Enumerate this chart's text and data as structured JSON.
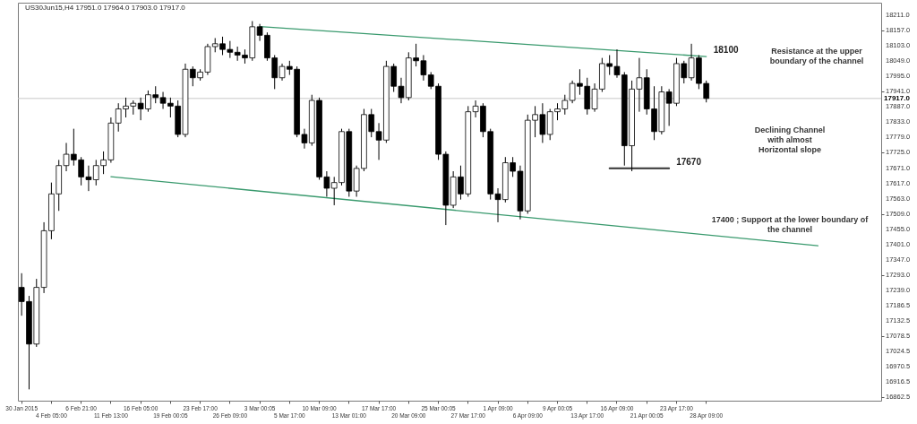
{
  "chart_data": {
    "type": "candlestick",
    "title": "US30Jun15,H4  17951.0 17964.0 17903.0 17917.0",
    "color": "#000000",
    "categories": [
      "30 Jan 2015",
      null,
      null,
      null,
      "4 Feb 05:00",
      null,
      null,
      null,
      "6 Feb 21:00",
      null,
      null,
      null,
      "11 Feb 13:00",
      null,
      null,
      null,
      "16 Feb 05:00",
      null,
      null,
      null,
      "19 Feb 00:05",
      null,
      null,
      null,
      "23 Feb 17:00",
      null,
      null,
      null,
      "26 Feb 09:00",
      null,
      null,
      null,
      "3 Mar 00:05",
      null,
      null,
      null,
      "5 Mar 17:00",
      null,
      null,
      null,
      "10 Mar 09:00",
      null,
      null,
      null,
      "13 Mar 01:00",
      null,
      null,
      null,
      "17 Mar 17:00",
      null,
      null,
      null,
      "20 Mar 09:00",
      null,
      null,
      null,
      "25 Mar 00:05",
      null,
      null,
      null,
      "27 Mar 17:00",
      null,
      null,
      null,
      "1 Apr 09:00",
      null,
      null,
      null,
      "6 Apr 09:00",
      null,
      null,
      null,
      "9 Apr 00:05",
      null,
      null,
      null,
      "13 Apr 17:00",
      null,
      null,
      null,
      "16 Apr 09:00",
      null,
      null,
      null,
      "21 Apr 00:05",
      null,
      null,
      null,
      "23 Apr 17:00",
      null,
      null,
      null,
      "28 Apr 09:00",
      null,
      null,
      null,
      null,
      null,
      null,
      null,
      null,
      null,
      null,
      null,
      null,
      null,
      null,
      null,
      null,
      null,
      null,
      null,
      null,
      null,
      null,
      null
    ],
    "ohlc": [
      [
        17250,
        17300,
        17150,
        17200
      ],
      [
        17200,
        17220,
        16890,
        17050
      ],
      [
        17050,
        17280,
        17040,
        17250
      ],
      [
        17250,
        17480,
        17230,
        17450
      ],
      [
        17450,
        17620,
        17420,
        17580
      ],
      [
        17580,
        17700,
        17520,
        17680
      ],
      [
        17680,
        17760,
        17660,
        17720
      ],
      [
        17720,
        17810,
        17680,
        17700
      ],
      [
        17700,
        17710,
        17610,
        17640
      ],
      [
        17640,
        17680,
        17590,
        17630
      ],
      [
        17630,
        17700,
        17610,
        17680
      ],
      [
        17680,
        17730,
        17650,
        17700
      ],
      [
        17700,
        17850,
        17690,
        17830
      ],
      [
        17830,
        17900,
        17800,
        17880
      ],
      [
        17880,
        17920,
        17850,
        17890
      ],
      [
        17890,
        17910,
        17860,
        17900
      ],
      [
        17900,
        17920,
        17840,
        17880
      ],
      [
        17880,
        17945,
        17870,
        17930
      ],
      [
        17930,
        17960,
        17900,
        17920
      ],
      [
        17920,
        17940,
        17880,
        17900
      ],
      [
        17900,
        17920,
        17850,
        17890
      ],
      [
        17890,
        17910,
        17780,
        17790
      ],
      [
        17790,
        18040,
        17780,
        18020
      ],
      [
        18020,
        18030,
        17960,
        17990
      ],
      [
        17990,
        18020,
        17980,
        18010
      ],
      [
        18010,
        18110,
        18000,
        18100
      ],
      [
        18100,
        18130,
        18080,
        18110
      ],
      [
        18110,
        18135,
        18070,
        18090
      ],
      [
        18090,
        18120,
        18060,
        18080
      ],
      [
        18080,
        18100,
        18050,
        18070
      ],
      [
        18070,
        18090,
        18040,
        18060
      ],
      [
        18060,
        18190,
        18050,
        18170
      ],
      [
        18170,
        18180,
        18120,
        18140
      ],
      [
        18140,
        18150,
        18050,
        18060
      ],
      [
        18060,
        18070,
        17950,
        17990
      ],
      [
        17990,
        18040,
        17980,
        18030
      ],
      [
        18030,
        18050,
        18000,
        18020
      ],
      [
        18020,
        18030,
        17780,
        17790
      ],
      [
        17790,
        17810,
        17740,
        17760
      ],
      [
        17760,
        17930,
        17750,
        17910
      ],
      [
        17910,
        17920,
        17630,
        17640
      ],
      [
        17640,
        17660,
        17570,
        17600
      ],
      [
        17600,
        17640,
        17540,
        17620
      ],
      [
        17620,
        17810,
        17610,
        17800
      ],
      [
        17800,
        17810,
        17570,
        17590
      ],
      [
        17590,
        17680,
        17570,
        17670
      ],
      [
        17670,
        17880,
        17660,
        17860
      ],
      [
        17860,
        17880,
        17780,
        17800
      ],
      [
        17800,
        17830,
        17700,
        17770
      ],
      [
        17770,
        18050,
        17760,
        18030
      ],
      [
        18030,
        18040,
        17940,
        17960
      ],
      [
        17960,
        17990,
        17900,
        17920
      ],
      [
        17920,
        18080,
        17910,
        18060
      ],
      [
        18060,
        18110,
        18030,
        18050
      ],
      [
        18050,
        18070,
        17980,
        18000
      ],
      [
        18000,
        18010,
        17950,
        17960
      ],
      [
        17960,
        17970,
        17700,
        17720
      ],
      [
        17720,
        17730,
        17470,
        17540
      ],
      [
        17540,
        17660,
        17530,
        17640
      ],
      [
        17640,
        17680,
        17560,
        17580
      ],
      [
        17580,
        17890,
        17570,
        17870
      ],
      [
        17870,
        17910,
        17850,
        17890
      ],
      [
        17890,
        17900,
        17780,
        17800
      ],
      [
        17800,
        17810,
        17560,
        17580
      ],
      [
        17580,
        17600,
        17480,
        17560
      ],
      [
        17560,
        17710,
        17550,
        17690
      ],
      [
        17690,
        17710,
        17640,
        17660
      ],
      [
        17660,
        17680,
        17490,
        17520
      ],
      [
        17520,
        17860,
        17510,
        17840
      ],
      [
        17840,
        17890,
        17780,
        17860
      ],
      [
        17860,
        17900,
        17760,
        17790
      ],
      [
        17790,
        17880,
        17770,
        17870
      ],
      [
        17870,
        17900,
        17840,
        17880
      ],
      [
        17880,
        17930,
        17860,
        17910
      ],
      [
        17910,
        17980,
        17900,
        17970
      ],
      [
        17970,
        18020,
        17930,
        17960
      ],
      [
        17960,
        17990,
        17860,
        17880
      ],
      [
        17880,
        17970,
        17870,
        17950
      ],
      [
        17950,
        18060,
        17940,
        18040
      ],
      [
        18040,
        18070,
        18000,
        18030
      ],
      [
        18030,
        18090,
        17990,
        18000
      ],
      [
        18000,
        18010,
        17680,
        17750
      ],
      [
        17750,
        17980,
        17660,
        17950
      ],
      [
        17950,
        18060,
        17870,
        17990
      ],
      [
        17990,
        18020,
        17860,
        17880
      ],
      [
        17880,
        17960,
        17770,
        17800
      ],
      [
        17800,
        17960,
        17790,
        17940
      ],
      [
        17940,
        17950,
        17820,
        17900
      ],
      [
        17900,
        18060,
        17890,
        18040
      ],
      [
        18040,
        18050,
        17970,
        17990
      ],
      [
        17990,
        18110,
        17980,
        18060
      ],
      [
        18060,
        18070,
        17950,
        17970
      ],
      [
        17970,
        17980,
        17903,
        17917
      ],
      null,
      null,
      null,
      null,
      null,
      null,
      null,
      null,
      null,
      null,
      null,
      null,
      null,
      null,
      null,
      null,
      null,
      null,
      null,
      null,
      null,
      null,
      null
    ],
    "series": [
      {
        "type": "line",
        "name": "18100",
        "color": "#3a9a6e",
        "values": [
          null,
          null,
          null,
          null,
          null,
          null,
          null,
          null,
          null,
          null,
          null,
          null,
          null,
          null,
          null,
          null,
          null,
          null,
          null,
          null,
          null,
          null,
          null,
          null,
          null,
          null,
          null,
          null,
          null,
          null,
          null,
          null,
          18171,
          null,
          null,
          null,
          null,
          null,
          null,
          null,
          null,
          null,
          null,
          null,
          null,
          null,
          null,
          null,
          null,
          null,
          null,
          null,
          null,
          null,
          null,
          null,
          null,
          null,
          null,
          null,
          null,
          null,
          null,
          null,
          null,
          null,
          null,
          null,
          null,
          null,
          null,
          null,
          null,
          null,
          null,
          null,
          null,
          null,
          null,
          null,
          null,
          null,
          null,
          null,
          null,
          null,
          null,
          null,
          null,
          null,
          null,
          null,
          18065,
          null,
          null,
          null,
          null,
          null,
          null,
          null,
          null,
          null,
          null,
          null,
          null,
          null,
          null,
          null,
          null,
          null,
          null,
          null,
          null,
          null,
          null,
          null
        ]
      },
      {
        "type": "line",
        "color": "#3a9a6e",
        "values": [
          null,
          null,
          null,
          null,
          null,
          null,
          null,
          null,
          null,
          null,
          null,
          null,
          17641,
          null,
          null,
          null,
          null,
          null,
          null,
          null,
          null,
          null,
          null,
          null,
          null,
          null,
          null,
          null,
          null,
          null,
          null,
          null,
          null,
          null,
          null,
          null,
          null,
          null,
          null,
          null,
          null,
          null,
          null,
          null,
          null,
          null,
          null,
          null,
          null,
          null,
          null,
          null,
          null,
          null,
          null,
          null,
          null,
          null,
          null,
          null,
          null,
          null,
          null,
          null,
          null,
          null,
          null,
          null,
          null,
          null,
          null,
          null,
          null,
          null,
          null,
          null,
          null,
          null,
          null,
          null,
          null,
          null,
          null,
          null,
          null,
          null,
          null,
          null,
          null,
          null,
          null,
          null,
          null,
          null,
          null,
          null,
          null,
          null,
          null,
          null,
          null,
          null,
          null,
          null,
          null,
          null,
          null,
          17397,
          null,
          null,
          null,
          null,
          null,
          null,
          null,
          null
        ]
      },
      {
        "type": "line",
        "name": "17670",
        "color": "#333333",
        "values": [
          null,
          null,
          null,
          null,
          null,
          null,
          null,
          null,
          null,
          null,
          null,
          null,
          null,
          null,
          null,
          null,
          null,
          null,
          null,
          null,
          null,
          null,
          null,
          null,
          null,
          null,
          null,
          null,
          null,
          null,
          null,
          null,
          null,
          null,
          null,
          null,
          null,
          null,
          null,
          null,
          null,
          null,
          null,
          null,
          null,
          null,
          null,
          null,
          null,
          null,
          null,
          null,
          null,
          null,
          null,
          null,
          null,
          null,
          null,
          null,
          null,
          null,
          null,
          null,
          null,
          null,
          null,
          null,
          null,
          null,
          null,
          null,
          null,
          null,
          null,
          null,
          null,
          null,
          null,
          17670,
          null,
          null,
          null,
          null,
          null,
          null,
          null,
          17670,
          null,
          null,
          null,
          null,
          null,
          null,
          null,
          null,
          null,
          null,
          null,
          null,
          null,
          null,
          null,
          null,
          null,
          null,
          null,
          null,
          null,
          null,
          null,
          null,
          null,
          null,
          null,
          null
        ]
      }
    ],
    "ref_lines": [
      {
        "axis": "y",
        "value": 17917,
        "label": "17917.0",
        "color": "#c8c8c8"
      }
    ],
    "annotations": [
      "Resistance at the upper boundary of the channel",
      "Declining Channel with almost Horizontal slope",
      "17400 ; Support at the lower boundary of the channel"
    ],
    "ylim": [
      16850,
      18255
    ],
    "yticks": [
      {
        "value": 18211,
        "label": "18211.0"
      },
      {
        "value": 18157,
        "label": "18157.0"
      },
      {
        "value": 18103,
        "label": "18103.0"
      },
      {
        "value": 18049,
        "label": "18049.0"
      },
      {
        "value": 17995,
        "label": "17995.0"
      },
      {
        "value": 17941,
        "label": "17941.0"
      },
      {
        "value": 17887,
        "label": "17887.0"
      },
      {
        "value": 17833,
        "label": "17833.0"
      },
      {
        "value": 17779,
        "label": "17779.0"
      },
      {
        "value": 17725,
        "label": "17725.0"
      },
      {
        "value": 17671,
        "label": "17671.0"
      },
      {
        "value": 17617,
        "label": "17617.0"
      },
      {
        "value": 17563,
        "label": "17563.0"
      },
      {
        "value": 17509,
        "label": "17509.0"
      },
      {
        "value": 17455,
        "label": "17455.0"
      },
      {
        "value": 17401,
        "label": "17401.0"
      },
      {
        "value": 17347,
        "label": "17347.0"
      },
      {
        "value": 17293,
        "label": "17293.0"
      },
      {
        "value": 17239,
        "label": "17239.0"
      },
      {
        "value": 17186.5,
        "label": "17186.5"
      },
      {
        "value": 17132.5,
        "label": "17132.5"
      },
      {
        "value": 17078.5,
        "label": "17078.5"
      },
      {
        "value": 17024.5,
        "label": "17024.5"
      },
      {
        "value": 16970.5,
        "label": "16970.5"
      },
      {
        "value": 16916.5,
        "label": "16916.5"
      },
      {
        "value": 16862.5,
        "label": "16862.5"
      }
    ]
  }
}
